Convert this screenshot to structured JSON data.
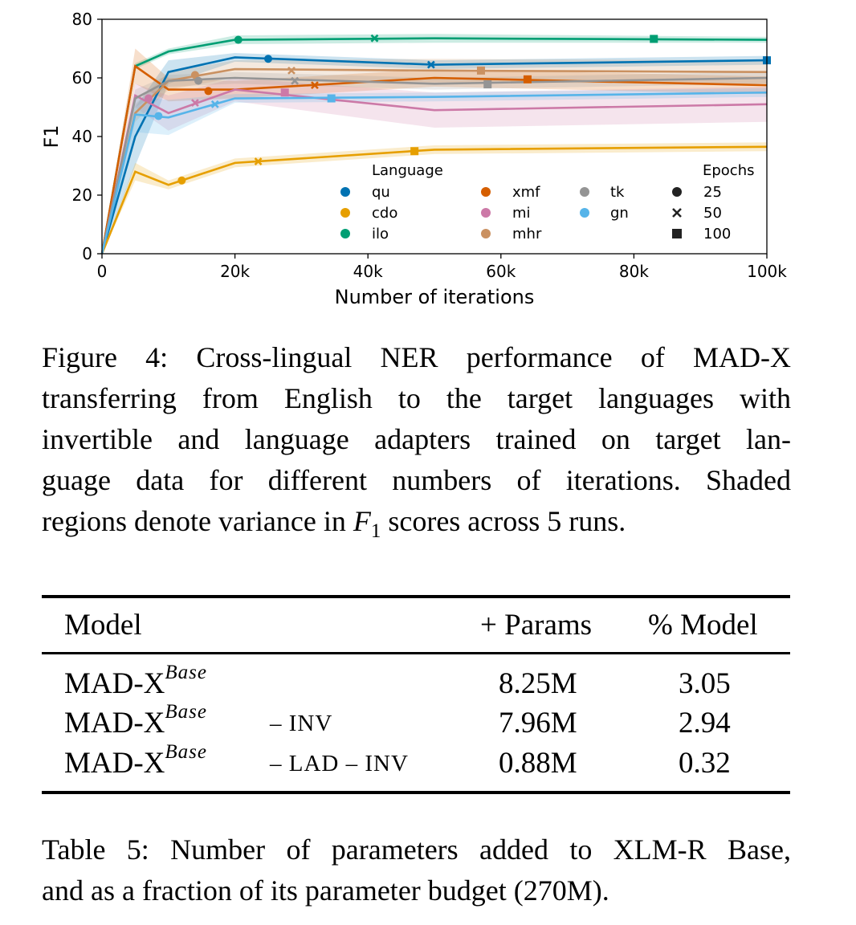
{
  "chart_data": {
    "type": "line",
    "xlabel": "Number of iterations",
    "ylabel": "F1",
    "xlim": [
      0,
      100000
    ],
    "ylim": [
      0,
      80
    ],
    "x_ticks": [
      0,
      20000,
      40000,
      60000,
      80000,
      100000
    ],
    "x_tick_labels": [
      "0",
      "20k",
      "40k",
      "60k",
      "80k",
      "100k"
    ],
    "y_ticks": [
      0,
      20,
      40,
      60,
      80
    ],
    "y_tick_labels": [
      "0",
      "20",
      "40",
      "60",
      "80"
    ],
    "grid": false,
    "x": [
      0,
      5000,
      10000,
      20000,
      50000,
      100000
    ],
    "legend": {
      "placement": "lower-right",
      "language_title": "Language",
      "epochs_title": "Epochs",
      "epochs": [
        {
          "label": "25",
          "marker": "circle"
        },
        {
          "label": "50",
          "marker": "x"
        },
        {
          "label": "100",
          "marker": "square"
        }
      ]
    },
    "series": [
      {
        "name": "qu",
        "color": "#0072b2",
        "values": [
          0,
          40,
          62,
          67,
          64.5,
          66
        ],
        "spread": [
          0,
          10,
          4,
          1.5,
          1.5,
          1.5
        ],
        "markers": {
          "25": [
            25000,
            66.5
          ],
          "50": [
            49500,
            64.5
          ],
          "100": [
            100000,
            66
          ]
        }
      },
      {
        "name": "cdo",
        "color": "#e69f00",
        "values": [
          0,
          28,
          23.5,
          31,
          35.5,
          36.5
        ],
        "spread": [
          0,
          3,
          1.5,
          1.5,
          1.5,
          1.5
        ],
        "markers": {
          "25": [
            12000,
            25
          ],
          "50": [
            23500,
            31.5
          ],
          "100": [
            47000,
            35
          ]
        }
      },
      {
        "name": "ilo",
        "color": "#009e73",
        "values": [
          0,
          64,
          69,
          73,
          73.5,
          73
        ],
        "spread": [
          0,
          1,
          1,
          1.5,
          1.5,
          1
        ],
        "markers": {
          "25": [
            20500,
            73
          ],
          "50": [
            41000,
            73.5
          ],
          "100": [
            83000,
            73.3
          ]
        }
      },
      {
        "name": "xmf",
        "color": "#d55e00",
        "values": [
          0,
          64,
          56,
          56,
          60,
          57.5
        ],
        "spread": [
          0,
          6,
          4,
          3,
          3,
          3
        ],
        "markers": {
          "25": [
            16000,
            55.5
          ],
          "50": [
            32000,
            57.5
          ],
          "100": [
            64000,
            59.5
          ]
        }
      },
      {
        "name": "mi",
        "color": "#cc79a7",
        "values": [
          0,
          54,
          48,
          56,
          49,
          51
        ],
        "spread": [
          0,
          4,
          6,
          4,
          6,
          6
        ],
        "markers": {
          "25": [
            7000,
            53
          ],
          "50": [
            14000,
            51.5
          ],
          "100": [
            27500,
            55
          ]
        }
      },
      {
        "name": "mhr",
        "color": "#ca9161",
        "values": [
          0,
          48,
          59,
          63,
          62.5,
          62
        ],
        "spread": [
          0,
          3,
          3,
          3,
          4,
          4
        ],
        "markers": {
          "25": [
            14000,
            61
          ],
          "50": [
            28500,
            62.5
          ],
          "100": [
            57000,
            62.5
          ]
        }
      },
      {
        "name": "tk",
        "color": "#949494",
        "values": [
          0,
          53,
          59,
          60,
          58,
          60
        ],
        "spread": [
          0,
          3,
          2,
          2,
          2,
          2
        ],
        "markers": {
          "25": [
            14500,
            59
          ],
          "50": [
            29000,
            59
          ],
          "100": [
            58000,
            57.8
          ]
        }
      },
      {
        "name": "gn",
        "color": "#56b4e9",
        "values": [
          0,
          47.5,
          46.5,
          53,
          53.5,
          55
        ],
        "spread": [
          0,
          6,
          6,
          1.5,
          1.5,
          1.5
        ],
        "markers": {
          "25": [
            8500,
            47
          ],
          "50": [
            17000,
            51
          ],
          "100": [
            34500,
            53
          ]
        }
      }
    ]
  },
  "figure_caption": {
    "lines": [
      "Figure 4: Cross-lingual NER performance of MAD-X",
      "transferring from English to the target languages with",
      "invertible and language adapters trained on target lan-",
      "guage data for different numbers of iterations. Shaded"
    ],
    "last_line_prefix": "regions denote variance in ",
    "math_var": "F",
    "math_sub": "1",
    "last_line_suffix": " scores across 5 runs."
  },
  "table": {
    "headers": [
      "Model",
      "+ Params",
      "% Model"
    ],
    "rows": [
      {
        "model": "MAD-X",
        "sup": "Base",
        "suffix": "",
        "params": "8.25M",
        "pct": "3.05"
      },
      {
        "model": "MAD-X",
        "sup": "Base",
        "suffix": "– INV",
        "params": "7.96M",
        "pct": "2.94"
      },
      {
        "model": "MAD-X",
        "sup": "Base",
        "suffix": "– LAD – INV",
        "params": "0.88M",
        "pct": "0.32"
      }
    ]
  },
  "table_caption": {
    "lines": [
      "Table 5: Number of parameters added to XLM-R Base,",
      "and as a fraction of its parameter budget (270M)."
    ]
  }
}
